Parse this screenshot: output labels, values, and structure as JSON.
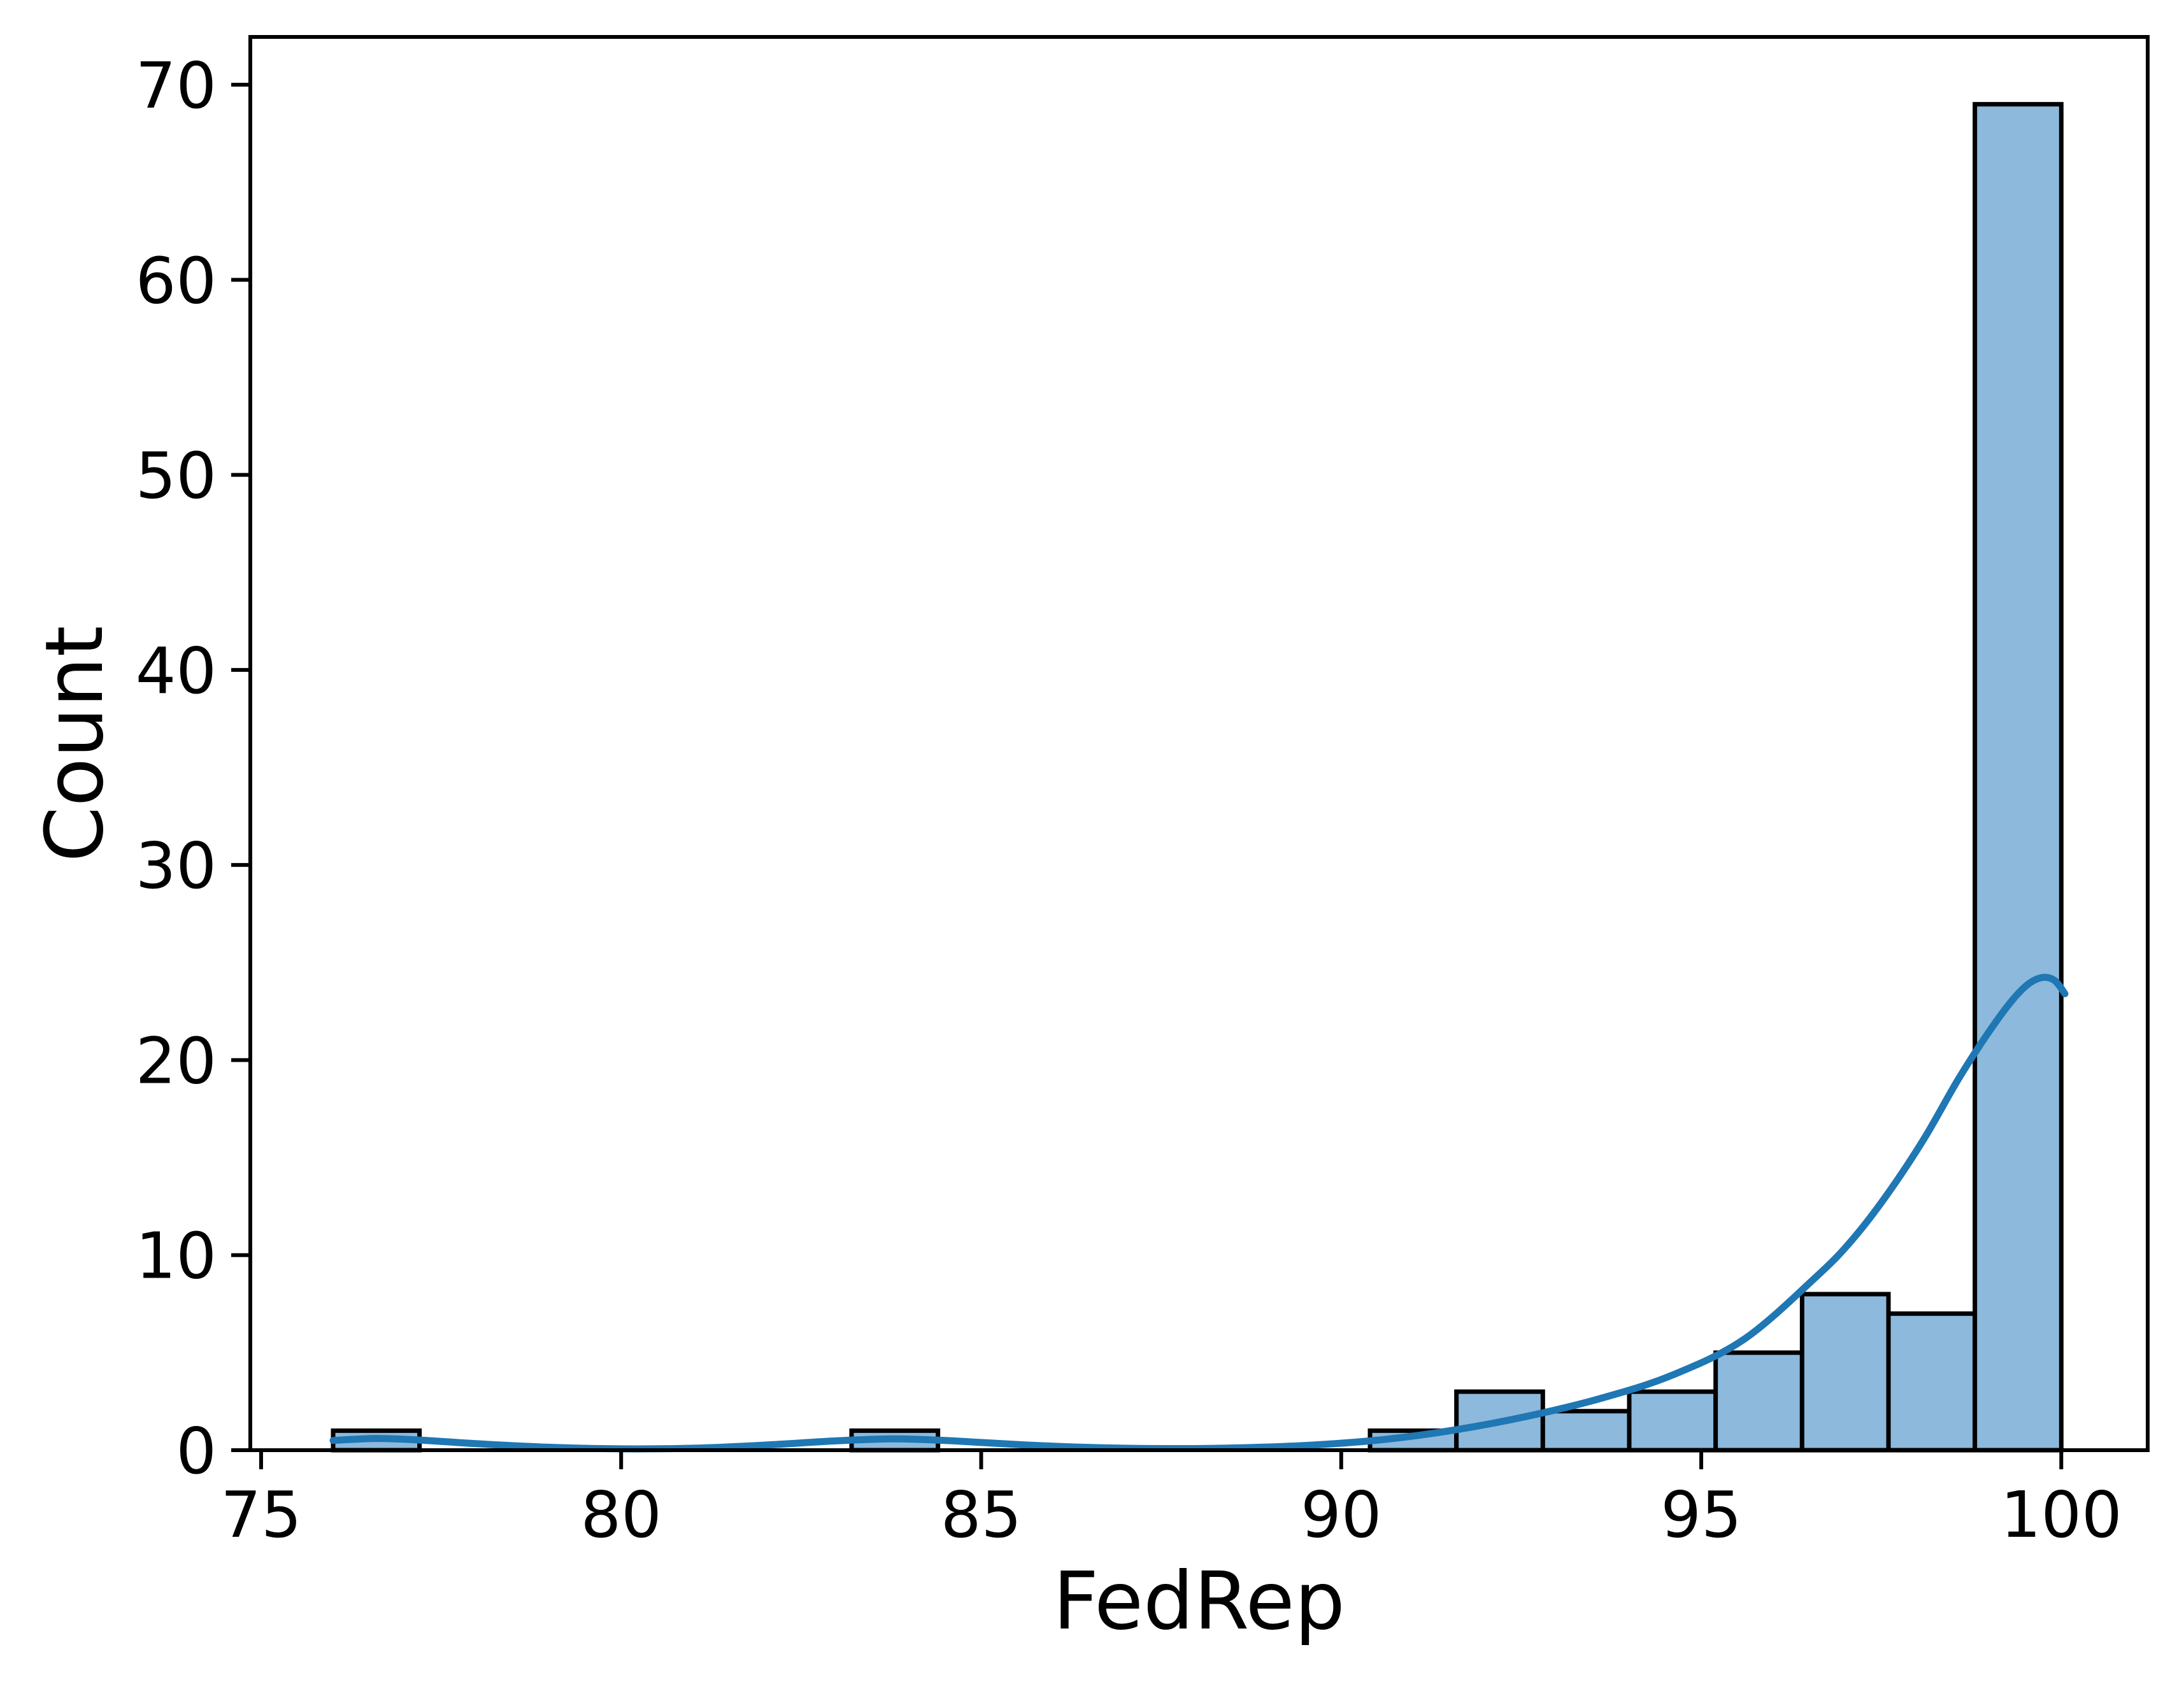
{
  "figure": {
    "background": "#ffffff"
  },
  "chart_data": {
    "type": "bar",
    "subtype": "histogram_with_kde",
    "title": "",
    "xlabel": "FedRep",
    "ylabel": "Count",
    "xlim": [
      74.85,
      101.2
    ],
    "ylim": [
      0,
      72.45
    ],
    "x_ticks": [
      75,
      80,
      85,
      90,
      95,
      100
    ],
    "y_ticks": [
      0,
      10,
      20,
      30,
      40,
      50,
      60,
      70
    ],
    "grid": false,
    "legend": false,
    "bin_start": 76.0,
    "bin_width": 1.2,
    "bin_counts": [
      1,
      0,
      0,
      0,
      0,
      0,
      1,
      0,
      0,
      0,
      0,
      0,
      1,
      3,
      2,
      3,
      5,
      8,
      7,
      69
    ],
    "total_observations": 100,
    "max_count": 69,
    "colors": {
      "bar_fill": "#8cb9dc",
      "bar_edge": "#000000",
      "kde_line": "#1f77b4",
      "axis": "#000000"
    },
    "kde_curve_points": [
      [
        76.0,
        0.5
      ],
      [
        76.6,
        0.6
      ],
      [
        77.2,
        0.52
      ],
      [
        78.0,
        0.33
      ],
      [
        79.0,
        0.15
      ],
      [
        80.0,
        0.07
      ],
      [
        81.0,
        0.1
      ],
      [
        82.0,
        0.26
      ],
      [
        83.0,
        0.48
      ],
      [
        83.8,
        0.58
      ],
      [
        84.6,
        0.48
      ],
      [
        85.6,
        0.27
      ],
      [
        86.6,
        0.13
      ],
      [
        87.6,
        0.08
      ],
      [
        88.6,
        0.12
      ],
      [
        89.6,
        0.26
      ],
      [
        90.6,
        0.55
      ],
      [
        91.6,
        1.05
      ],
      [
        92.6,
        1.75
      ],
      [
        93.6,
        2.65
      ],
      [
        94.6,
        3.85
      ],
      [
        95.6,
        5.7
      ],
      [
        96.6,
        8.9
      ],
      [
        97.1,
        10.8
      ],
      [
        97.6,
        13.2
      ],
      [
        98.1,
        16.0
      ],
      [
        98.6,
        19.2
      ],
      [
        99.1,
        22.0
      ],
      [
        99.45,
        23.6
      ],
      [
        99.7,
        24.2
      ],
      [
        99.9,
        24.1
      ],
      [
        100.05,
        23.4
      ]
    ]
  }
}
